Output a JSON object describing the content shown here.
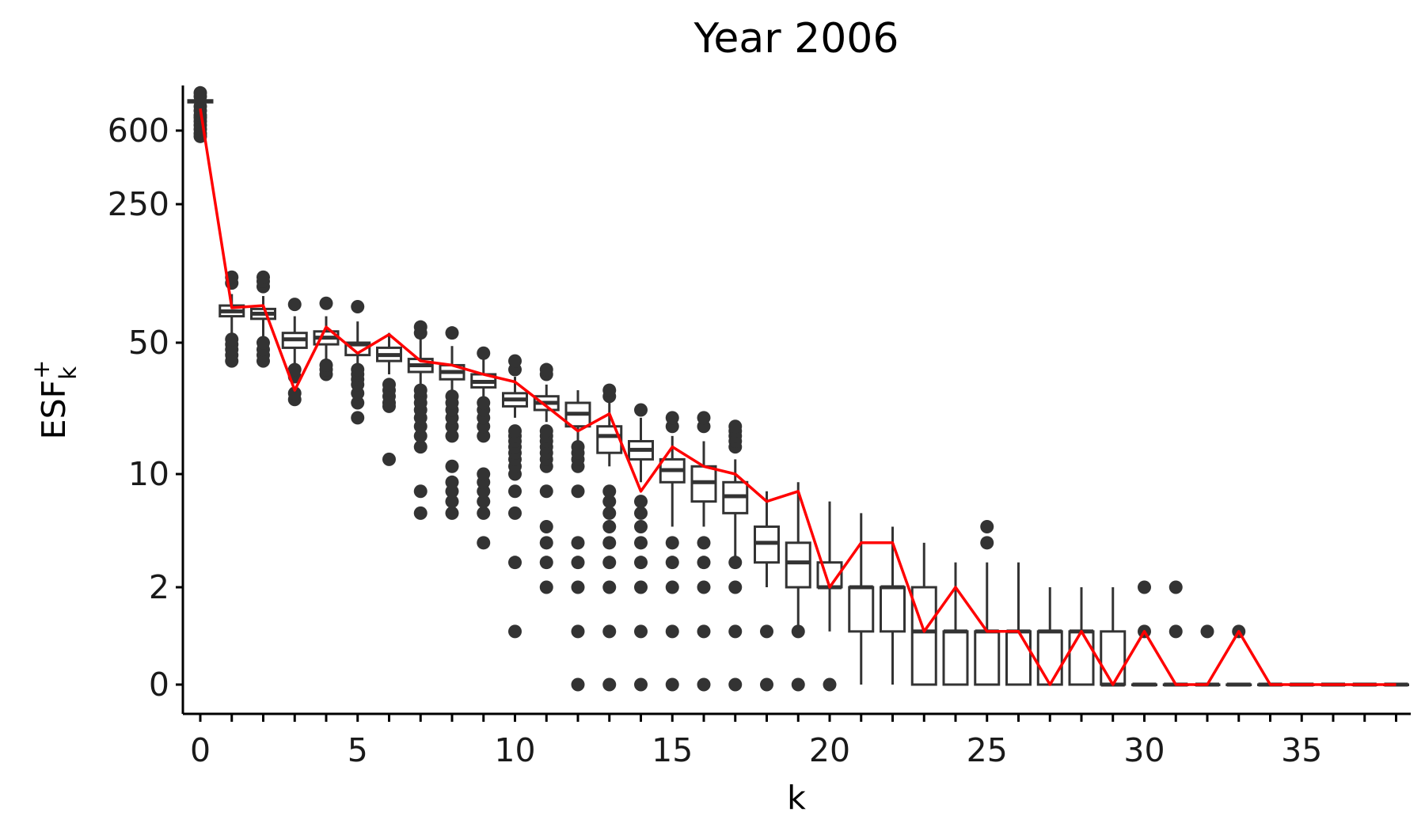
{
  "chart_data": {
    "type": "box",
    "title": "Year 2006",
    "xlabel": "k",
    "ylabel": {
      "base": "ESF",
      "subscript": "k",
      "superscript": "+"
    },
    "y_scale": "pseudo-log (asinh-like)",
    "xlim": [
      -0.5,
      38.5
    ],
    "x_ticks": [
      0,
      5,
      10,
      15,
      20,
      25,
      30,
      35
    ],
    "y_ticks": [
      0,
      2,
      10,
      50,
      250,
      600
    ],
    "grid": false,
    "legend": "none",
    "colors": {
      "box": "#333333",
      "line": "#ff0000",
      "text": "#1a1a1a"
    },
    "boxes": [
      {
        "k": 0,
        "q1": 840,
        "median": 850,
        "q3": 860,
        "lo": 600,
        "hi": 890,
        "out": [
          560,
          580,
          610,
          640,
          670,
          700,
          720,
          760,
          800,
          900,
          940
        ]
      },
      {
        "k": 1,
        "q1": 68,
        "median": 72,
        "q3": 77,
        "lo": 55,
        "hi": 88,
        "out": [
          40,
          43,
          46,
          49,
          52,
          100,
          107
        ]
      },
      {
        "k": 2,
        "q1": 66,
        "median": 70,
        "q3": 74,
        "lo": 53,
        "hi": 86,
        "out": [
          40,
          43,
          46,
          50,
          96,
          102,
          107
        ]
      },
      {
        "k": 3,
        "q1": 47,
        "median": 52,
        "q3": 56,
        "lo": 36,
        "hi": 68,
        "out": [
          25,
          27,
          33,
          36,
          78
        ]
      },
      {
        "k": 4,
        "q1": 49,
        "median": 53,
        "q3": 57,
        "lo": 40,
        "hi": 68,
        "out": [
          34,
          36,
          38,
          79
        ]
      },
      {
        "k": 5,
        "q1": 43,
        "median": 49,
        "q3": 50,
        "lo": 38,
        "hi": 64,
        "out": [
          20,
          24,
          27,
          30,
          32,
          34,
          36,
          76
        ]
      },
      {
        "k": 6,
        "q1": 40,
        "median": 43,
        "q3": 47,
        "lo": 34,
        "hi": 56,
        "out": [
          12,
          23,
          24,
          26,
          28,
          30
        ]
      },
      {
        "k": 7,
        "q1": 35,
        "median": 38,
        "q3": 41,
        "lo": 29,
        "hi": 54,
        "out": [
          6,
          8,
          14,
          16,
          18,
          20,
          22,
          24,
          26,
          28,
          56,
          60
        ]
      },
      {
        "k": 8,
        "q1": 32,
        "median": 35,
        "q3": 38,
        "lo": 27,
        "hi": 48,
        "out": [
          6,
          7,
          8,
          9,
          11,
          16,
          18,
          20,
          22,
          24,
          26,
          56
        ]
      },
      {
        "k": 9,
        "q1": 29,
        "median": 31,
        "q3": 34,
        "lo": 25,
        "hi": 42,
        "out": [
          4,
          6,
          7,
          8,
          9,
          10,
          16,
          18,
          20,
          22,
          24,
          44
        ]
      },
      {
        "k": 10,
        "q1": 23,
        "median": 25,
        "q3": 27,
        "lo": 20,
        "hi": 33,
        "out": [
          1,
          3,
          6,
          8,
          10,
          11,
          12,
          13,
          14,
          15,
          16,
          17,
          36,
          40
        ]
      },
      {
        "k": 11,
        "q1": 22,
        "median": 24,
        "q3": 26,
        "lo": 19,
        "hi": 30,
        "out": [
          2,
          3,
          4,
          5,
          8,
          11,
          12,
          13,
          14,
          15,
          16,
          17,
          34,
          36
        ]
      },
      {
        "k": 12,
        "q1": 18,
        "median": 21,
        "q3": 24,
        "lo": 15,
        "hi": 28,
        "out": [
          0,
          1,
          2,
          3,
          4,
          8,
          11,
          12,
          13,
          14
        ]
      },
      {
        "k": 13,
        "q1": 13,
        "median": 16,
        "q3": 18,
        "lo": 11,
        "hi": 24,
        "out": [
          0,
          1,
          2,
          3,
          4,
          5,
          6,
          7,
          8,
          26,
          28
        ]
      },
      {
        "k": 14,
        "q1": 12,
        "median": 13.5,
        "q3": 15,
        "lo": 9,
        "hi": 20,
        "out": [
          0,
          1,
          2,
          3,
          4,
          5,
          6,
          7,
          22
        ]
      },
      {
        "k": 15,
        "q1": 9,
        "median": 10.5,
        "q3": 12,
        "lo": 5,
        "hi": 16,
        "out": [
          0,
          1,
          2,
          3,
          4,
          18,
          20
        ]
      },
      {
        "k": 16,
        "q1": 7,
        "median": 9,
        "q3": 11,
        "lo": 5,
        "hi": 15,
        "out": [
          0,
          1,
          2,
          3,
          4,
          18,
          20
        ]
      },
      {
        "k": 17,
        "q1": 6,
        "median": 7.5,
        "q3": 9,
        "lo": 3,
        "hi": 12,
        "out": [
          0,
          1,
          2,
          3,
          14,
          15,
          16,
          17,
          18
        ]
      },
      {
        "k": 18,
        "q1": 3,
        "median": 4,
        "q3": 5,
        "lo": 2,
        "hi": 8,
        "out": [
          0,
          1
        ]
      },
      {
        "k": 19,
        "q1": 2,
        "median": 3,
        "q3": 4,
        "lo": 1,
        "hi": 9,
        "out": [
          0,
          1
        ]
      },
      {
        "k": 20,
        "q1": 2,
        "median": 2,
        "q3": 3,
        "lo": 1,
        "hi": 7,
        "out": [
          0
        ]
      },
      {
        "k": 21,
        "q1": 1,
        "median": 2,
        "q3": 2,
        "lo": 0,
        "hi": 6
      },
      {
        "k": 22,
        "q1": 1,
        "median": 2,
        "q3": 2,
        "lo": 0,
        "hi": 5
      },
      {
        "k": 23,
        "q1": 0,
        "median": 1,
        "q3": 2,
        "lo": 0,
        "hi": 4
      },
      {
        "k": 24,
        "q1": 0,
        "median": 1,
        "q3": 1,
        "lo": 0,
        "hi": 3
      },
      {
        "k": 25,
        "q1": 0,
        "median": 1,
        "q3": 1,
        "lo": 0,
        "hi": 3,
        "out": [
          4,
          5
        ]
      },
      {
        "k": 26,
        "q1": 0,
        "median": 1,
        "q3": 1,
        "lo": 0,
        "hi": 3
      },
      {
        "k": 27,
        "q1": 0,
        "median": 1,
        "q3": 1,
        "lo": 0,
        "hi": 2
      },
      {
        "k": 28,
        "q1": 0,
        "median": 1,
        "q3": 1,
        "lo": 0,
        "hi": 2
      },
      {
        "k": 29,
        "q1": 0,
        "median": 0,
        "q3": 1,
        "lo": 0,
        "hi": 2
      },
      {
        "k": 30,
        "q1": 0,
        "median": 0,
        "q3": 0,
        "lo": 0,
        "hi": 0,
        "out": [
          1,
          2
        ]
      },
      {
        "k": 31,
        "q1": 0,
        "median": 0,
        "q3": 0,
        "lo": 0,
        "hi": 0,
        "out": [
          1,
          2
        ]
      },
      {
        "k": 32,
        "q1": 0,
        "median": 0,
        "q3": 0,
        "lo": 0,
        "hi": 0,
        "out": [
          1
        ]
      },
      {
        "k": 33,
        "q1": 0,
        "median": 0,
        "q3": 0,
        "lo": 0,
        "hi": 0,
        "out": [
          1
        ]
      },
      {
        "k": 34,
        "q1": 0,
        "median": 0,
        "q3": 0,
        "lo": 0,
        "hi": 0
      },
      {
        "k": 35,
        "q1": 0,
        "median": 0,
        "q3": 0,
        "lo": 0,
        "hi": 0
      },
      {
        "k": 36,
        "q1": 0,
        "median": 0,
        "q3": 0,
        "lo": 0,
        "hi": 0
      },
      {
        "k": 37,
        "q1": 0,
        "median": 0,
        "q3": 0,
        "lo": 0,
        "hi": 0
      },
      {
        "k": 38,
        "q1": 0,
        "median": 0,
        "q3": 0,
        "lo": 0,
        "hi": 0
      }
    ],
    "observed_line": {
      "x": [
        0,
        1,
        2,
        3,
        4,
        5,
        6,
        7,
        8,
        9,
        10,
        11,
        12,
        13,
        14,
        15,
        16,
        17,
        18,
        19,
        20,
        21,
        22,
        23,
        24,
        25,
        26,
        27,
        28,
        29,
        30,
        31,
        32,
        33,
        34,
        35,
        36,
        37,
        38
      ],
      "y": [
        780,
        75,
        77,
        28,
        60,
        44,
        55,
        40,
        38,
        34,
        31,
        23,
        17,
        21,
        8,
        14,
        11,
        10,
        7,
        8,
        2,
        4,
        4,
        1,
        2,
        1,
        1,
        0,
        1,
        0,
        1,
        0,
        0,
        1,
        0,
        0,
        0,
        0,
        0
      ]
    }
  }
}
